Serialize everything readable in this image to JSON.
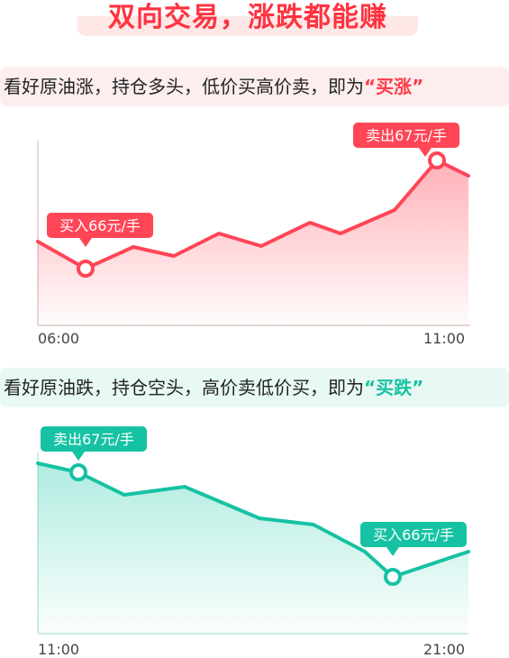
{
  "headline": "双向交易，涨跌都能赚",
  "rise_section": {
    "desc": "看好原油涨，持仓多头，低价买高价卖，即为",
    "keyword": "“买涨”",
    "buy_tag": "买入66元/手",
    "sell_tag": "卖出67元/手",
    "x_start": "06:00",
    "x_end": "11:00",
    "color": "#ff3b48"
  },
  "fall_section": {
    "desc": "看好原油跌，持仓空头，高价卖低价买，即为",
    "keyword": "“买跌”",
    "sell_tag": "卖出67元/手",
    "buy_tag": "买入66元/手",
    "x_start": "11:00",
    "x_end": "21:00",
    "color": "#16c2a3"
  }
}
